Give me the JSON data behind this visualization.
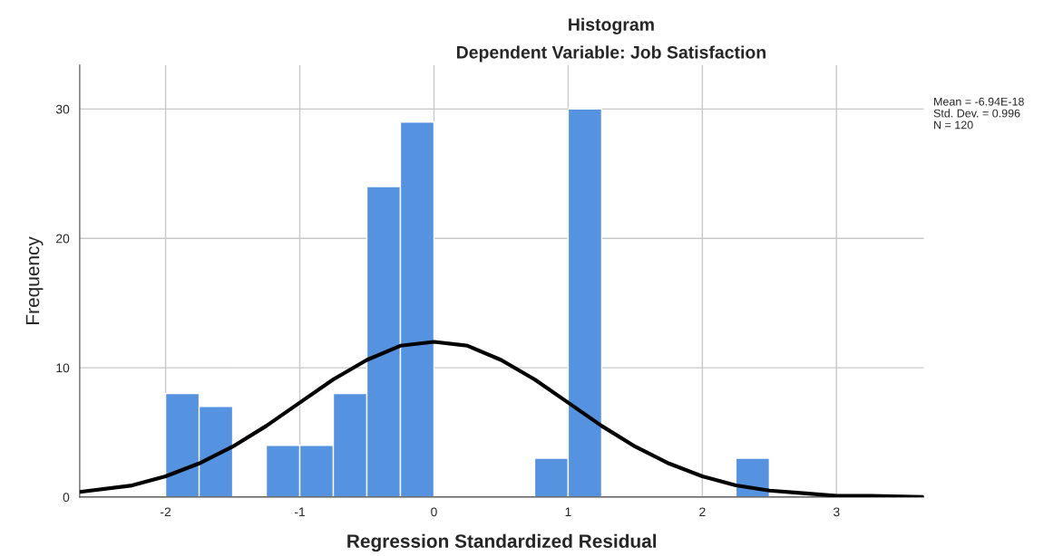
{
  "chart_data": {
    "type": "histogram",
    "title": "Histogram",
    "subtitle": "Dependent Variable: Job Satisfaction",
    "xlabel": "Regression Standardized Residual",
    "ylabel": "Frequency",
    "bins": [
      -2.0,
      -1.75,
      -1.5,
      -1.25,
      -1.0,
      -0.75,
      -0.5,
      -0.25,
      0.0,
      0.25,
      0.5,
      0.75,
      1.0,
      1.25,
      1.5,
      1.75,
      2.0,
      2.25,
      2.5
    ],
    "values": [
      8,
      7,
      0,
      4,
      4,
      8,
      24,
      29,
      0,
      0,
      0,
      3,
      30,
      0,
      0,
      0,
      0,
      3
    ],
    "color": "#5593e0",
    "series": [
      {
        "type": "line",
        "color": "#000000",
        "x": [
          -2.64,
          -2.25,
          -2.0,
          -1.75,
          -1.5,
          -1.25,
          -1.0,
          -0.75,
          -0.5,
          -0.25,
          0.0,
          0.25,
          0.5,
          0.75,
          1.0,
          1.25,
          1.5,
          1.75,
          2.0,
          2.25,
          2.5,
          2.75,
          3.0,
          3.25,
          3.65
        ],
        "values": [
          0.4,
          0.9,
          1.6,
          2.6,
          3.9,
          5.5,
          7.3,
          9.1,
          10.6,
          11.7,
          12.0,
          11.7,
          10.6,
          9.1,
          7.3,
          5.5,
          3.9,
          2.6,
          1.6,
          0.9,
          0.5,
          0.3,
          0.1,
          0.1,
          0.0
        ]
      }
    ],
    "xlim": [
      -2.64,
      3.65
    ],
    "ylim": [
      0,
      33.4
    ],
    "xticks": [
      -2,
      -1,
      0,
      1,
      2,
      3
    ],
    "yticks": [
      0,
      10,
      20,
      30
    ],
    "grid": true,
    "line_style": "solid",
    "marker": "none",
    "annotations": [
      "Mean = -6.94E-18",
      "Std. Dev. = 0.996",
      "N = 120"
    ]
  }
}
